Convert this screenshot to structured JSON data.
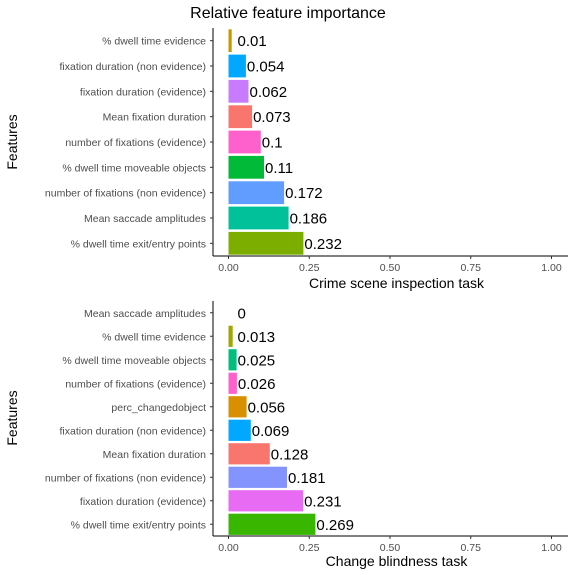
{
  "title": "Relative feature importance",
  "chart_data": [
    {
      "type": "bar",
      "orientation": "horizontal",
      "xlabel": "Crime scene inspection task",
      "ylabel": "Features",
      "xlim": [
        0,
        1
      ],
      "xticks": [
        "0.00",
        "0.25",
        "0.50",
        "0.75",
        "1.00"
      ],
      "grid": false,
      "bars": [
        {
          "label": "% dwell time evidence",
          "value": 0.01,
          "value_label": "0.01",
          "color": "#C49A00"
        },
        {
          "label": "fixation duration (non evidence)",
          "value": 0.054,
          "value_label": "0.054",
          "color": "#00A9FF"
        },
        {
          "label": "fixation duration (evidence)",
          "value": 0.062,
          "value_label": "0.062",
          "color": "#C77CFF"
        },
        {
          "label": "Mean fixation duration",
          "value": 0.073,
          "value_label": "0.073",
          "color": "#F8766D"
        },
        {
          "label": "number of fixations (evidence)",
          "value": 0.1,
          "value_label": "0.1",
          "color": "#FF61CC"
        },
        {
          "label": "% dwell time moveable objects",
          "value": 0.11,
          "value_label": "0.11",
          "color": "#00BA38"
        },
        {
          "label": "number of fixations (non evidence)",
          "value": 0.172,
          "value_label": "0.172",
          "color": "#619CFF"
        },
        {
          "label": "Mean saccade amplitudes",
          "value": 0.186,
          "value_label": "0.186",
          "color": "#00C19A"
        },
        {
          "label": "% dwell time exit/entry points",
          "value": 0.232,
          "value_label": "0.232",
          "color": "#7CAE00"
        }
      ]
    },
    {
      "type": "bar",
      "orientation": "horizontal",
      "xlabel": "Change blindness task",
      "ylabel": "Features",
      "xlim": [
        0,
        1
      ],
      "xticks": [
        "0.00",
        "0.25",
        "0.50",
        "0.75",
        "1.00"
      ],
      "grid": false,
      "bars": [
        {
          "label": "Mean saccade amplitudes",
          "value": 0,
          "value_label": "0",
          "color": "#7CAE00"
        },
        {
          "label": "% dwell time evidence",
          "value": 0.013,
          "value_label": "0.013",
          "color": "#A3A500"
        },
        {
          "label": "% dwell time moveable objects",
          "value": 0.025,
          "value_label": "0.025",
          "color": "#00BF7D"
        },
        {
          "label": "number of fixations (evidence)",
          "value": 0.026,
          "value_label": "0.026",
          "color": "#FF61CC"
        },
        {
          "label": "perc_changedobject",
          "value": 0.056,
          "value_label": "0.056",
          "color": "#D89000"
        },
        {
          "label": "fixation duration (non evidence)",
          "value": 0.069,
          "value_label": "0.069",
          "color": "#00A9FF"
        },
        {
          "label": "Mean fixation duration",
          "value": 0.128,
          "value_label": "0.128",
          "color": "#F8766D"
        },
        {
          "label": "number of fixations (non evidence)",
          "value": 0.181,
          "value_label": "0.181",
          "color": "#8494FF"
        },
        {
          "label": "fixation duration (evidence)",
          "value": 0.231,
          "value_label": "0.231",
          "color": "#E76BF3"
        },
        {
          "label": "% dwell time exit/entry points",
          "value": 0.269,
          "value_label": "0.269",
          "color": "#39B600"
        }
      ]
    }
  ]
}
